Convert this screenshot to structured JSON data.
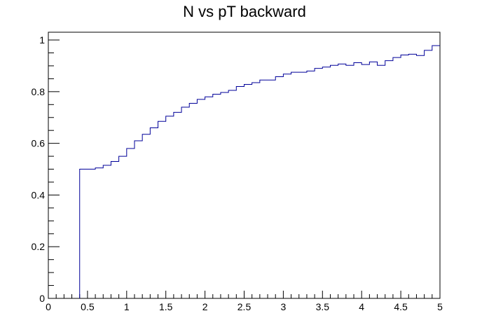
{
  "chart_data": {
    "type": "line",
    "style": "step-histogram",
    "title": "N vs pT backward",
    "xlabel": "",
    "ylabel": "",
    "xlim": [
      0,
      5
    ],
    "ylim": [
      0,
      1.03
    ],
    "x_major_ticks": [
      "0",
      "0.5",
      "1",
      "1.5",
      "2",
      "2.5",
      "3",
      "3.5",
      "4",
      "4.5",
      "5"
    ],
    "y_major_ticks": [
      "0",
      "0.2",
      "0.4",
      "0.6",
      "0.8",
      "1"
    ],
    "grid": false,
    "line_color": "#000099",
    "bin_width": 0.1,
    "series": [
      {
        "x_low_edges": [
          0.4,
          0.5,
          0.6,
          0.7,
          0.8,
          0.9,
          1.0,
          1.1,
          1.2,
          1.3,
          1.4,
          1.5,
          1.6,
          1.7,
          1.8,
          1.9,
          2.0,
          2.1,
          2.2,
          2.3,
          2.4,
          2.5,
          2.6,
          2.7,
          2.8,
          2.9,
          3.0,
          3.1,
          3.2,
          3.3,
          3.4,
          3.5,
          3.6,
          3.7,
          3.8,
          3.9,
          4.0,
          4.1,
          4.2,
          4.3,
          4.4,
          4.5,
          4.6,
          4.7,
          4.8,
          4.9
        ],
        "values": [
          0.5,
          0.5,
          0.505,
          0.515,
          0.53,
          0.55,
          0.58,
          0.61,
          0.635,
          0.66,
          0.685,
          0.705,
          0.72,
          0.74,
          0.755,
          0.77,
          0.78,
          0.79,
          0.797,
          0.805,
          0.82,
          0.828,
          0.835,
          0.845,
          0.845,
          0.858,
          0.868,
          0.875,
          0.875,
          0.88,
          0.89,
          0.895,
          0.902,
          0.907,
          0.902,
          0.912,
          0.905,
          0.915,
          0.902,
          0.92,
          0.932,
          0.942,
          0.945,
          0.94,
          0.96,
          0.978
        ]
      }
    ]
  }
}
